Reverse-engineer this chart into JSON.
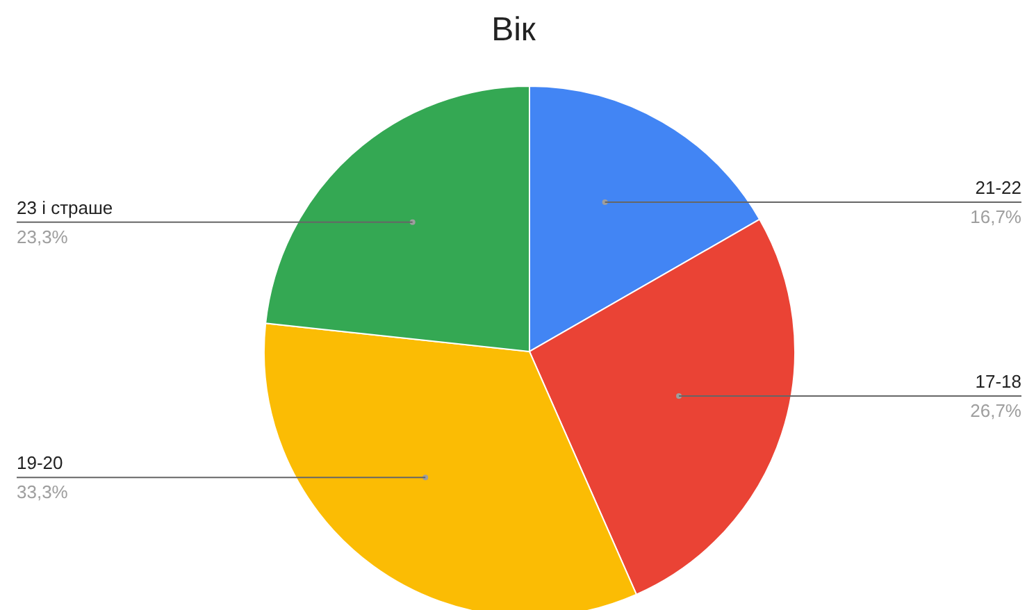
{
  "chart_data": {
    "type": "pie",
    "title": "Вік",
    "categories": [
      "21-22",
      "17-18",
      "19-20",
      "23 і страше"
    ],
    "values": [
      16.7,
      26.7,
      33.3,
      23.3
    ],
    "value_labels": [
      "16,7%",
      "26,7%",
      "33,3%",
      "23,3%"
    ],
    "colors": [
      "#4285f4",
      "#ea4335",
      "#fbbc04",
      "#34a853"
    ]
  }
}
